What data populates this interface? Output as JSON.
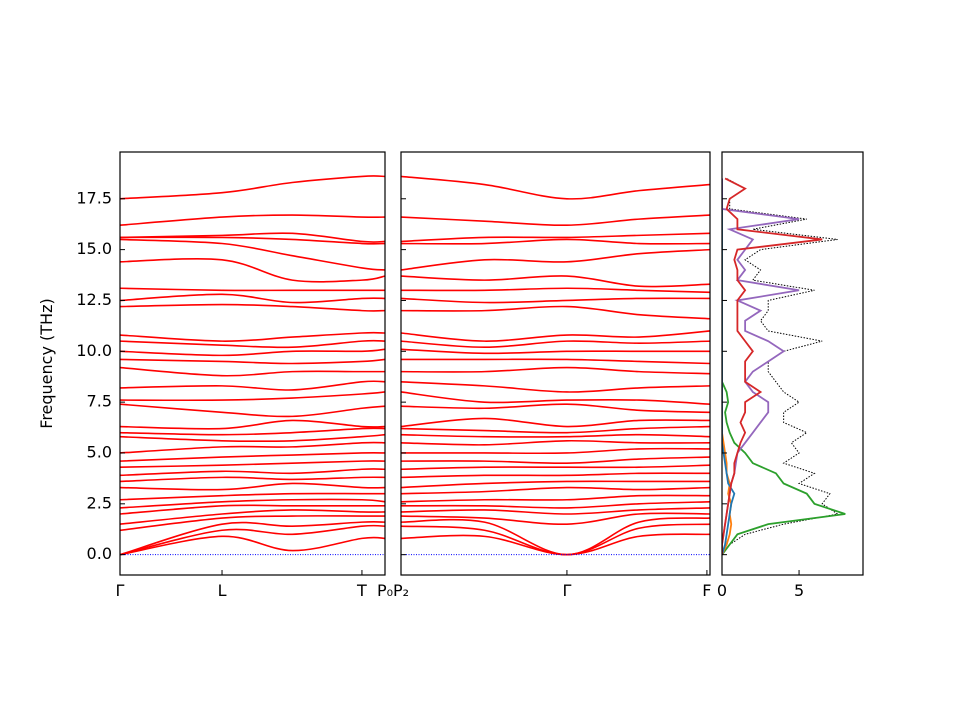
{
  "chart_data": [
    {
      "type": "line",
      "ylabel": "Frequency (THz)",
      "color": "#ff0000",
      "xlim": [
        0,
        1
      ],
      "ylim": [
        -1,
        19.8
      ],
      "xticks": [
        {
          "value": 0,
          "label": "Γ"
        },
        {
          "value": 0.385,
          "label": "L"
        },
        {
          "value": 0.913,
          "label": "T"
        },
        {
          "value": 1.0,
          "label": "P₀"
        }
      ],
      "yticks": [
        {
          "value": 0,
          "label": "0.0"
        },
        2.5,
        {
          "value": 5,
          "label": "5.0"
        },
        7.5,
        {
          "value": 10,
          "label": "10.0"
        },
        12.5,
        {
          "value": 15,
          "label": "15.0"
        },
        17.5
      ],
      "x": [
        0,
        0.385,
        0.65,
        0.913,
        1.0
      ],
      "bands": [
        [
          0,
          0.9,
          0.2,
          0.8,
          0.8
        ],
        [
          0,
          1.2,
          1.0,
          1.4,
          1.4
        ],
        [
          0,
          1.5,
          1.4,
          1.6,
          1.6
        ],
        [
          1.2,
          1.8,
          1.9,
          1.9,
          1.9
        ],
        [
          1.5,
          2.0,
          2.2,
          2.1,
          2.1
        ],
        [
          2.0,
          2.4,
          2.4,
          2.4,
          2.4
        ],
        [
          2.3,
          2.6,
          2.7,
          2.7,
          2.6
        ],
        [
          2.7,
          2.9,
          3.0,
          3.0,
          3.0
        ],
        [
          3.3,
          3.2,
          3.5,
          3.3,
          3.3
        ],
        [
          3.6,
          3.8,
          3.7,
          3.8,
          3.8
        ],
        [
          3.9,
          4.1,
          4.0,
          4.2,
          4.2
        ],
        [
          4.3,
          4.4,
          4.5,
          4.6,
          4.6
        ],
        [
          4.6,
          4.8,
          4.9,
          5.0,
          5.0
        ],
        [
          5.0,
          5.3,
          5.3,
          5.5,
          5.5
        ],
        [
          5.8,
          5.6,
          5.6,
          5.8,
          5.9
        ],
        [
          6.0,
          5.9,
          6.0,
          6.2,
          6.2
        ],
        [
          6.3,
          6.2,
          6.6,
          6.3,
          6.3
        ],
        [
          7.4,
          7.0,
          6.8,
          7.2,
          7.3
        ],
        [
          7.6,
          7.6,
          7.7,
          7.9,
          8.0
        ],
        [
          8.2,
          8.3,
          8.1,
          8.5,
          8.5
        ],
        [
          9.2,
          8.8,
          9.0,
          9.0,
          9.0
        ],
        [
          9.6,
          9.5,
          9.4,
          9.5,
          9.6
        ],
        [
          10.0,
          9.8,
          10.0,
          10.0,
          10.1
        ],
        [
          10.5,
          10.3,
          10.2,
          10.5,
          10.5
        ],
        [
          10.8,
          10.5,
          10.7,
          10.9,
          10.9
        ],
        [
          12.2,
          12.3,
          12.2,
          12.0,
          12.0
        ],
        [
          12.5,
          12.8,
          12.4,
          12.6,
          12.6
        ],
        [
          13.1,
          13.0,
          13.0,
          13.0,
          13.0
        ],
        [
          14.4,
          14.5,
          13.5,
          13.5,
          13.7
        ],
        [
          15.5,
          15.3,
          14.7,
          14.1,
          14.0
        ],
        [
          15.6,
          15.6,
          15.5,
          15.3,
          15.3
        ],
        [
          15.6,
          15.7,
          15.8,
          15.4,
          15.4
        ],
        [
          16.2,
          16.6,
          16.7,
          16.6,
          16.6
        ],
        [
          17.5,
          17.8,
          18.3,
          18.6,
          18.6
        ]
      ],
      "reference": {
        "color": "#0000ff",
        "style": "dotted",
        "values": [
          0,
          0,
          0,
          0,
          0
        ]
      }
    },
    {
      "type": "line",
      "color": "#ff0000",
      "xlim": [
        0,
        1
      ],
      "ylim": [
        -1,
        19.8
      ],
      "xticks": [
        {
          "value": 0,
          "label": "P₂"
        },
        {
          "value": 0.537,
          "label": "Γ"
        },
        {
          "value": 0.99,
          "label": "F"
        }
      ],
      "x": [
        0,
        0.27,
        0.537,
        0.77,
        1.0
      ],
      "bands": [
        [
          0.8,
          0.9,
          0,
          0.9,
          1.0
        ],
        [
          1.4,
          1.2,
          0,
          1.3,
          1.5
        ],
        [
          1.6,
          1.6,
          0,
          1.6,
          1.8
        ],
        [
          1.9,
          1.8,
          1.5,
          2.0,
          2.0
        ],
        [
          2.1,
          2.2,
          2.0,
          2.2,
          2.3
        ],
        [
          2.4,
          2.4,
          2.3,
          2.5,
          2.6
        ],
        [
          2.6,
          2.7,
          2.7,
          2.9,
          2.9
        ],
        [
          3.0,
          3.1,
          3.3,
          3.2,
          3.3
        ],
        [
          3.3,
          3.5,
          3.6,
          3.6,
          3.6
        ],
        [
          3.8,
          3.9,
          3.9,
          4.0,
          4.0
        ],
        [
          4.2,
          4.3,
          4.3,
          4.3,
          4.4
        ],
        [
          4.6,
          4.6,
          4.5,
          4.7,
          4.8
        ],
        [
          5.0,
          5.0,
          5.0,
          5.2,
          5.2
        ],
        [
          5.5,
          5.4,
          5.6,
          5.5,
          5.5
        ],
        [
          5.9,
          5.8,
          5.8,
          5.9,
          5.8
        ],
        [
          6.2,
          6.1,
          6.0,
          6.2,
          6.3
        ],
        [
          6.3,
          6.7,
          6.3,
          6.6,
          6.6
        ],
        [
          7.3,
          7.2,
          7.4,
          7.1,
          7.0
        ],
        [
          8.0,
          7.5,
          7.6,
          7.6,
          7.4
        ],
        [
          8.5,
          8.3,
          8.0,
          8.2,
          8.3
        ],
        [
          9.0,
          9.0,
          9.2,
          9.0,
          8.9
        ],
        [
          9.6,
          9.6,
          9.6,
          9.5,
          9.4
        ],
        [
          10.1,
          9.9,
          10.0,
          10.0,
          10.0
        ],
        [
          10.5,
          10.2,
          10.5,
          10.4,
          10.5
        ],
        [
          10.9,
          10.5,
          10.8,
          10.7,
          11.0
        ],
        [
          12.0,
          12.0,
          12.2,
          11.8,
          11.6
        ],
        [
          12.6,
          12.4,
          12.5,
          12.6,
          12.6
        ],
        [
          13.0,
          13.0,
          13.1,
          13.0,
          12.9
        ],
        [
          13.7,
          13.5,
          13.7,
          13.2,
          13.3
        ],
        [
          14.0,
          14.5,
          14.4,
          14.8,
          15.0
        ],
        [
          15.3,
          15.3,
          15.5,
          15.3,
          15.3
        ],
        [
          15.4,
          15.6,
          15.6,
          15.7,
          15.8
        ],
        [
          16.6,
          16.4,
          16.2,
          16.5,
          16.7
        ],
        [
          18.6,
          18.2,
          17.5,
          17.9,
          18.2
        ]
      ],
      "reference": {
        "color": "#0000ff",
        "style": "dotted",
        "values": [
          0,
          0,
          0,
          0,
          0
        ]
      }
    },
    {
      "type": "dos",
      "xlim": [
        0,
        9.15
      ],
      "ylim": [
        -1,
        19.8
      ],
      "xticks": [
        0,
        5
      ],
      "y": [
        0,
        0.5,
        1,
        1.5,
        2,
        2.5,
        3,
        3.5,
        4,
        4.5,
        5,
        5.5,
        6,
        6.5,
        7,
        7.5,
        8,
        8.5,
        9,
        9.5,
        10,
        10.5,
        11,
        11.5,
        12,
        12.5,
        13,
        13.5,
        14,
        14.5,
        15,
        15.5,
        16,
        16.5,
        17,
        17.5,
        18,
        18.5
      ],
      "series": [
        {
          "color": "#000000",
          "style": "dotted",
          "values": [
            0,
            0.5,
            1.5,
            4,
            7.5,
            6.5,
            7,
            5,
            6,
            4,
            5,
            4.5,
            5.5,
            4,
            4,
            5,
            4,
            3.5,
            3,
            3,
            4,
            6.5,
            3,
            2.5,
            3,
            3,
            6,
            2,
            2.5,
            1.5,
            2.5,
            7.5,
            2,
            5.5,
            0.5,
            0.5,
            1.5,
            0.3
          ]
        },
        {
          "color": "#2ca02c",
          "values": [
            0,
            0.5,
            1,
            3,
            8,
            6,
            5.5,
            4,
            3.5,
            2,
            1.5,
            0.8,
            0.5,
            0.3,
            0.2,
            0.4,
            0.3,
            0,
            0,
            0,
            0,
            0,
            0,
            0,
            0,
            0,
            0,
            0,
            0,
            0,
            0,
            0,
            0,
            0,
            0,
            0,
            0,
            0
          ]
        },
        {
          "color": "#ff7f0e",
          "values": [
            0,
            0.3,
            0.5,
            0.6,
            0.5,
            0.6,
            0.4,
            0.5,
            0.3,
            0.3,
            0.2,
            0.1,
            0,
            0,
            0,
            0,
            0,
            0,
            0,
            0,
            0,
            0,
            0,
            0,
            0,
            0,
            0,
            0,
            0,
            0,
            0,
            0,
            0,
            0,
            0,
            0,
            0,
            0
          ]
        },
        {
          "color": "#1f77b4",
          "values": [
            0,
            0.2,
            0.3,
            0.4,
            0.5,
            0.6,
            0.8,
            0.4,
            0.3,
            0.2,
            0.1,
            0,
            0,
            0,
            0,
            0,
            0,
            0,
            0,
            0,
            0,
            0,
            0,
            0,
            0,
            0,
            0,
            0,
            0,
            0,
            0,
            0,
            0,
            0,
            0,
            0,
            0,
            0
          ]
        },
        {
          "color": "#9467bd",
          "values": [
            0,
            0,
            0.1,
            0.2,
            0.3,
            0.4,
            0.5,
            0.6,
            0.8,
            0.9,
            1,
            1.5,
            2,
            2.5,
            3,
            3,
            2,
            1.5,
            2,
            3,
            4,
            3,
            1.5,
            1.5,
            2.5,
            1,
            5,
            1,
            1.5,
            1,
            1.5,
            2,
            0.5,
            5,
            0,
            0,
            0,
            0
          ]
        },
        {
          "color": "#d62728",
          "values": [
            0,
            0,
            0.1,
            0.2,
            0.3,
            0.4,
            0.5,
            0.6,
            0.8,
            0.8,
            1,
            1.2,
            1.5,
            1.2,
            1.5,
            1.5,
            2.5,
            1.5,
            1.5,
            1.5,
            2,
            1.5,
            1,
            1,
            1,
            1,
            1.5,
            1,
            1,
            0.8,
            1,
            6.5,
            1,
            1,
            0.3,
            0.5,
            1.5,
            0.2
          ]
        }
      ]
    }
  ]
}
